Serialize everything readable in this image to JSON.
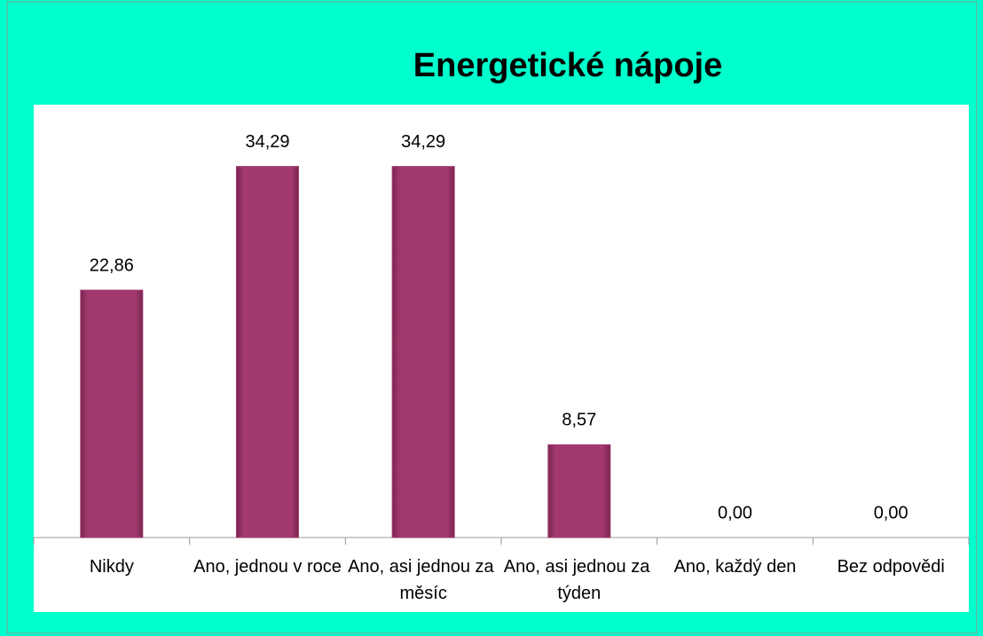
{
  "chart_data": {
    "type": "bar",
    "title": "Energetické nápoje",
    "categories": [
      "Nikdy",
      "Ano, jednou v roce",
      "Ano, asi jednou za měsíc",
      "Ano, asi jednou za týden",
      "Ano, každý den",
      "Bez odpovědi"
    ],
    "values": [
      22.86,
      34.29,
      34.29,
      8.57,
      0,
      0
    ],
    "value_labels": [
      "22,86",
      "34,29",
      "34,29",
      "8,57",
      "0,00",
      "0,00"
    ],
    "color": "#a23a6e",
    "ylim": [
      0,
      40
    ]
  }
}
